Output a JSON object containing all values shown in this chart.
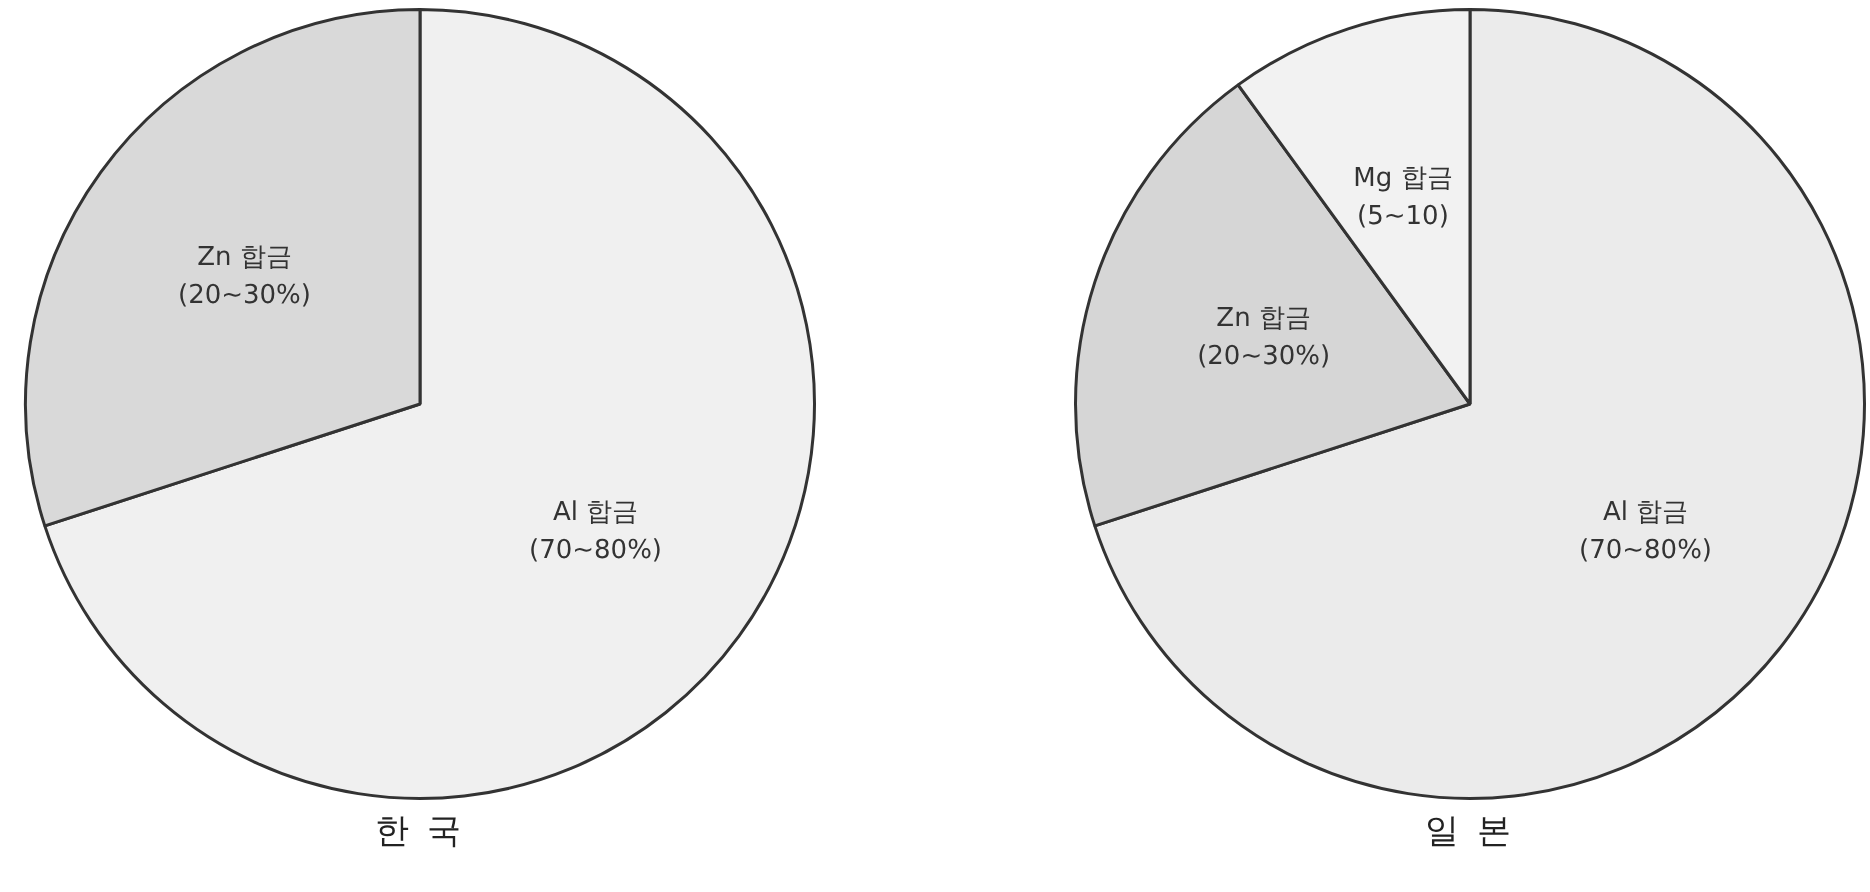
{
  "chart_data": [
    {
      "type": "pie",
      "title": "한 국",
      "categories": [
        "Al 합금",
        "Zn 합금"
      ],
      "values": [
        70,
        30
      ],
      "colors": [
        "#f0f0f0",
        "#d9d9d9"
      ],
      "value_labels": [
        "(70~80%)",
        "(20~30%)"
      ]
    },
    {
      "type": "pie",
      "title": "일 본",
      "categories": [
        "Al 합금",
        "Zn 합금",
        "Mg 합금"
      ],
      "values": [
        70,
        20,
        10
      ],
      "colors": [
        "#ebebeb",
        "#d6d6d6",
        "#f2f2f2"
      ],
      "value_labels": [
        "(70~80%)",
        "(20~30%)",
        "(5~10)"
      ]
    }
  ]
}
